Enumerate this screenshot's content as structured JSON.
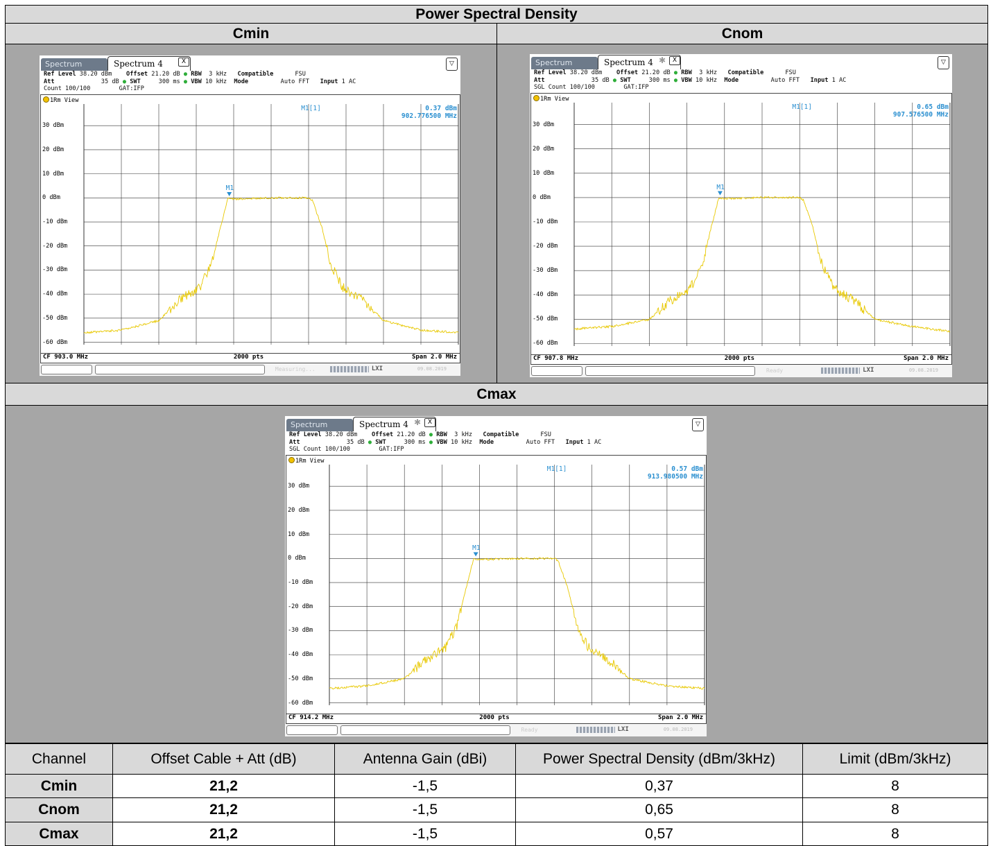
{
  "title": "Power Spectral Density",
  "labels": {
    "cmin": "Cmin",
    "cnom": "Cnom",
    "cmax": "Cmax"
  },
  "table": {
    "headers": [
      "Channel",
      "Offset Cable + Att (dB)",
      "Antenna Gain (dBi)",
      "Power Spectral Density (dBm/3kHz)",
      "Limit (dBm/3kHz)"
    ],
    "rows": [
      [
        "Cmin",
        "21,2",
        "-1,5",
        "0,37",
        "8"
      ],
      [
        "Cnom",
        "21,2",
        "-1,5",
        "0,65",
        "8"
      ],
      [
        "Cmax",
        "21,2",
        "-1,5",
        "0,57",
        "8"
      ]
    ]
  },
  "analyzer_common": {
    "tab_spectrum": "Spectrum",
    "tab_spectrum4": "Spectrum 4",
    "ref_level_label": "Ref Level",
    "ref_level": "38.20 dBm",
    "offset_label": "Offset",
    "offset": "21.20 dB",
    "rbw_label": "RBW",
    "rbw": "3 kHz",
    "compatible_label": "Compatible",
    "compatible": "FSU",
    "att_label": "Att",
    "att": "35 dB",
    "swt_label": "SWT",
    "swt": "300 ms",
    "vbw_label": "VBW",
    "vbw": "10 kHz",
    "mode_label": "Mode",
    "mode": "Auto FFT",
    "input_label": "Input",
    "input": "1 AC",
    "gat": "GAT:IFP",
    "view": "1Rm View",
    "marker_name": "M1[1]",
    "marker_tag": "M1",
    "pts": "2000 pts",
    "span": "Span 2.0 MHz",
    "date": "09.08.2019",
    "y_labels": [
      "30 dBm",
      "20 dBm",
      "10 dBm",
      "0 dBm",
      "-10 dBm",
      "-20 dBm",
      "-30 dBm",
      "-40 dBm",
      "-50 dBm",
      "-60 dBm"
    ]
  },
  "analyzers": [
    {
      "id": "cmin",
      "count": "Count 100/100",
      "marker_level": "0.37 dBm",
      "marker_freq": "902.776500 MHz",
      "cf": "CF 903.0 MHz",
      "status": "Measuring..."
    },
    {
      "id": "cnom",
      "count": "SGL Count 100/100",
      "marker_level": "0.65 dBm",
      "marker_freq": "907.576500 MHz",
      "cf": "CF 907.8 MHz",
      "status": "Ready"
    },
    {
      "id": "cmax",
      "count": "SGL Count 100/100",
      "marker_level": "0.57 dBm",
      "marker_freq": "913.980500 MHz",
      "cf": "CF 914.2 MHz",
      "status": "Ready"
    }
  ],
  "chart_data": [
    {
      "type": "line",
      "id": "cmin",
      "xlabel": "",
      "ylabel": "",
      "ylim": [
        -61,
        39
      ],
      "x_range_mhz": [
        902.0,
        904.0
      ],
      "series": [
        {
          "color": "#e8c800",
          "x": [
            902.0,
            902.2,
            902.4,
            902.5,
            902.62,
            902.68,
            902.73,
            902.77,
            902.8,
            903.0,
            903.2,
            903.22,
            903.27,
            903.32,
            903.38,
            903.5,
            903.6,
            903.8,
            904.0
          ],
          "y": [
            -56,
            -55,
            -51,
            -43,
            -37,
            -28,
            -12,
            0,
            -0.5,
            0,
            0,
            -1,
            -12,
            -28,
            -37,
            -43,
            -51,
            -55,
            -56
          ]
        }
      ],
      "marker": {
        "x": 902.7765,
        "y": 0.37
      }
    },
    {
      "type": "line",
      "id": "cnom",
      "xlabel": "",
      "ylabel": "",
      "ylim": [
        -61,
        39
      ],
      "x_range_mhz": [
        906.8,
        908.8
      ],
      "series": [
        {
          "color": "#e8c800",
          "x": [
            906.8,
            907.0,
            907.2,
            907.3,
            907.42,
            907.48,
            907.53,
            907.57,
            907.6,
            907.8,
            908.0,
            908.02,
            908.07,
            908.12,
            908.18,
            908.3,
            908.4,
            908.6,
            908.8
          ],
          "y": [
            -54,
            -53,
            -50,
            -43,
            -37,
            -28,
            -12,
            0,
            -0.5,
            0,
            0,
            -1,
            -12,
            -28,
            -37,
            -43,
            -50,
            -53,
            -55
          ]
        }
      ],
      "marker": {
        "x": 907.5765,
        "y": 0.65
      }
    },
    {
      "type": "line",
      "id": "cmax",
      "xlabel": "",
      "ylabel": "",
      "ylim": [
        -61,
        39
      ],
      "x_range_mhz": [
        913.2,
        915.2
      ],
      "series": [
        {
          "color": "#e8c800",
          "x": [
            913.2,
            913.4,
            913.6,
            913.7,
            913.82,
            913.88,
            913.93,
            913.97,
            914.0,
            914.2,
            914.4,
            914.42,
            914.47,
            914.52,
            914.58,
            914.7,
            914.8,
            915.0,
            915.2
          ],
          "y": [
            -54,
            -53,
            -50,
            -43,
            -37,
            -28,
            -12,
            0,
            -0.5,
            0,
            0,
            -1,
            -12,
            -28,
            -37,
            -43,
            -50,
            -53,
            -54
          ]
        }
      ],
      "marker": {
        "x": 913.9805,
        "y": 0.57
      }
    }
  ]
}
